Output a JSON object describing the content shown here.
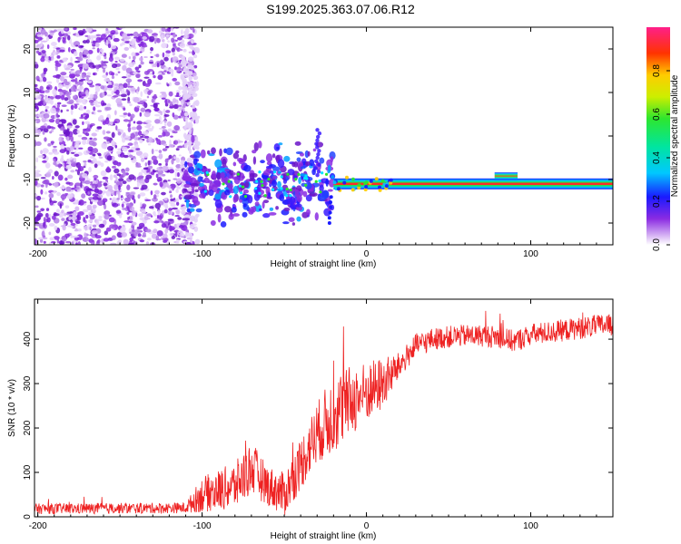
{
  "title": "S199.2025.363.07.06.R12",
  "colors": {
    "snr_line": "#ee2222",
    "spectrogram_speckle": "#8a2be2",
    "spectrogram_band": "#ff2a2a"
  },
  "chart_data": [
    {
      "type": "heatmap",
      "name": "spectrogram",
      "xlabel": "Height of straight line (km)",
      "ylabel": "Frequency (Hz)",
      "xlim": [
        -202,
        150
      ],
      "ylim": [
        -25,
        25
      ],
      "xticks": [
        -200,
        -100,
        0,
        100
      ],
      "xtick_labels": [
        "-200",
        "-100",
        "0",
        "100"
      ],
      "yticks": [
        -20,
        -10,
        0,
        10,
        20
      ],
      "ytick_labels": [
        "-20",
        "-10",
        "0",
        "10",
        "20"
      ],
      "colorbar": {
        "label": "Normalized spectral amplitude",
        "range": [
          0,
          1
        ],
        "ticks": [
          0.0,
          0.2,
          0.4,
          0.6,
          0.8
        ],
        "tick_labels": [
          "0.0",
          "0.2",
          "0.4",
          "0.6",
          "0.8"
        ]
      },
      "features": {
        "noise_region_x": [
          -202,
          -110
        ],
        "transition_region_x": [
          -110,
          -20
        ],
        "signal_band_x": [
          -20,
          150
        ],
        "signal_band_frequency": -11,
        "signal_band_peak_amplitude": 1.0
      }
    },
    {
      "type": "line",
      "name": "snr",
      "xlabel": "Height of straight line (km)",
      "ylabel": "SNR (10 * v/v)",
      "xlim": [
        -202,
        150
      ],
      "ylim": [
        0,
        490
      ],
      "xticks": [
        -200,
        -100,
        0,
        100
      ],
      "xtick_labels": [
        "-200",
        "-100",
        "0",
        "100"
      ],
      "yticks": [
        0,
        100,
        200,
        300,
        400
      ],
      "ytick_labels": [
        "0",
        "100",
        "200",
        "300",
        "400"
      ],
      "series": [
        {
          "name": "SNR",
          "trend_points": [
            [
              -202,
              18
            ],
            [
              -110,
              20
            ],
            [
              -100,
              50
            ],
            [
              -80,
              70
            ],
            [
              -70,
              110
            ],
            [
              -60,
              70
            ],
            [
              -50,
              50
            ],
            [
              -40,
              120
            ],
            [
              -30,
              190
            ],
            [
              -20,
              230
            ],
            [
              -10,
              260
            ],
            [
              0,
              280
            ],
            [
              10,
              300
            ],
            [
              20,
              340
            ],
            [
              30,
              385
            ],
            [
              40,
              400
            ],
            [
              50,
              405
            ],
            [
              60,
              408
            ],
            [
              70,
              408
            ],
            [
              80,
              405
            ],
            [
              90,
              395
            ],
            [
              100,
              410
            ],
            [
              110,
              415
            ],
            [
              120,
              420
            ],
            [
              130,
              425
            ],
            [
              140,
              430
            ],
            [
              150,
              432
            ]
          ],
          "noise_points": [
            [
              -202,
              12
            ],
            [
              -110,
              12
            ],
            [
              -100,
              40
            ],
            [
              -70,
              60
            ],
            [
              -60,
              45
            ],
            [
              -50,
              50
            ],
            [
              -30,
              70
            ],
            [
              -20,
              90
            ],
            [
              -10,
              80
            ],
            [
              0,
              70
            ],
            [
              10,
              60
            ],
            [
              20,
              30
            ],
            [
              40,
              25
            ],
            [
              150,
              25
            ]
          ]
        }
      ]
    }
  ]
}
